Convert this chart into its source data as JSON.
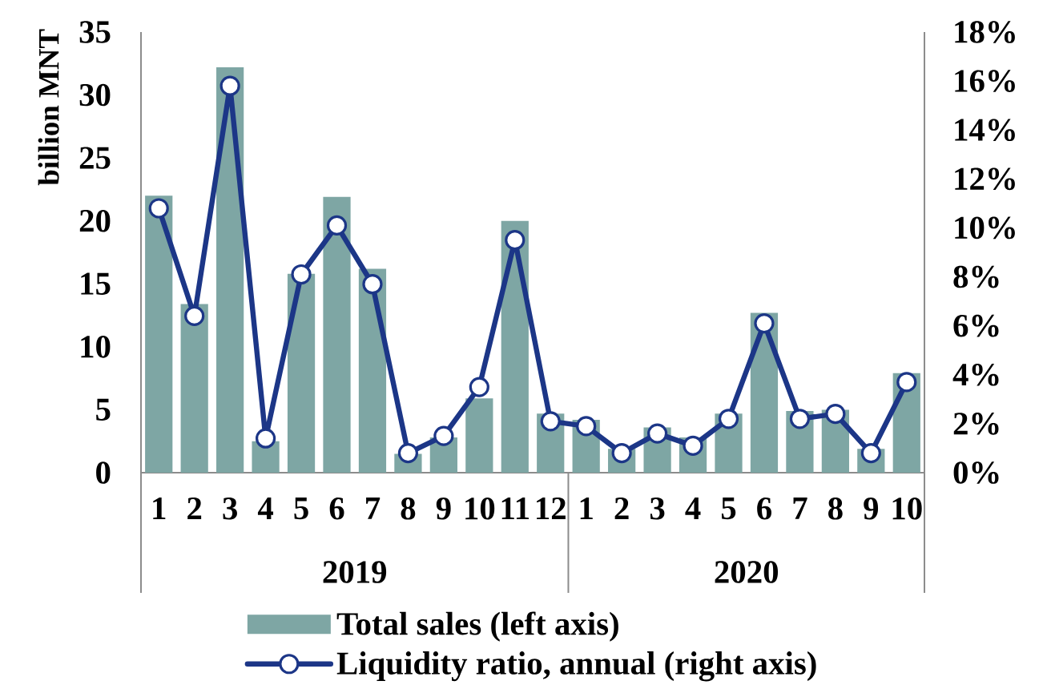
{
  "chart_data": {
    "type": "bar",
    "ylabel": "billion MNT",
    "categories": [
      "1",
      "2",
      "3",
      "4",
      "5",
      "6",
      "7",
      "8",
      "9",
      "10",
      "11",
      "12",
      "1",
      "2",
      "3",
      "4",
      "5",
      "6",
      "7",
      "8",
      "9",
      "10"
    ],
    "annotations": [
      "2019",
      "2020"
    ],
    "series": [
      {
        "name": "Total sales (left axis)",
        "color": "#7ea6a4",
        "values": [
          22.0,
          13.4,
          32.2,
          2.5,
          15.8,
          21.9,
          16.2,
          1.5,
          2.8,
          5.9,
          20.0,
          4.7,
          4.2,
          1.9,
          3.6,
          2.8,
          4.7,
          12.7,
          4.9,
          5.0,
          1.9,
          7.9
        ]
      },
      {
        "name": "Liquidity ratio, annual (right axis)",
        "type": "line",
        "axis": "y2",
        "color": "#1c3687",
        "marker": "circle",
        "line_style": "solid",
        "values": [
          10.8,
          6.4,
          15.8,
          1.4,
          8.1,
          10.1,
          7.7,
          0.8,
          1.5,
          3.5,
          9.5,
          2.1,
          1.9,
          0.8,
          1.6,
          1.1,
          2.2,
          6.1,
          2.2,
          2.4,
          0.8,
          3.7
        ]
      }
    ],
    "ylim": [
      0,
      35
    ],
    "yticks": [
      0,
      5,
      10,
      15,
      20,
      25,
      30,
      35
    ],
    "y2lim": [
      0,
      18
    ],
    "y2ticks": [
      {
        "value": 0,
        "label": "0%"
      },
      {
        "value": 2,
        "label": "2%"
      },
      {
        "value": 4,
        "label": "4%"
      },
      {
        "value": 6,
        "label": "6%"
      },
      {
        "value": 8,
        "label": "8%"
      },
      {
        "value": 10,
        "label": "10%"
      },
      {
        "value": 12,
        "label": "12%"
      },
      {
        "value": 14,
        "label": "14%"
      },
      {
        "value": 16,
        "label": "16%"
      },
      {
        "value": 18,
        "label": "18%"
      }
    ],
    "legend": "bottom"
  }
}
